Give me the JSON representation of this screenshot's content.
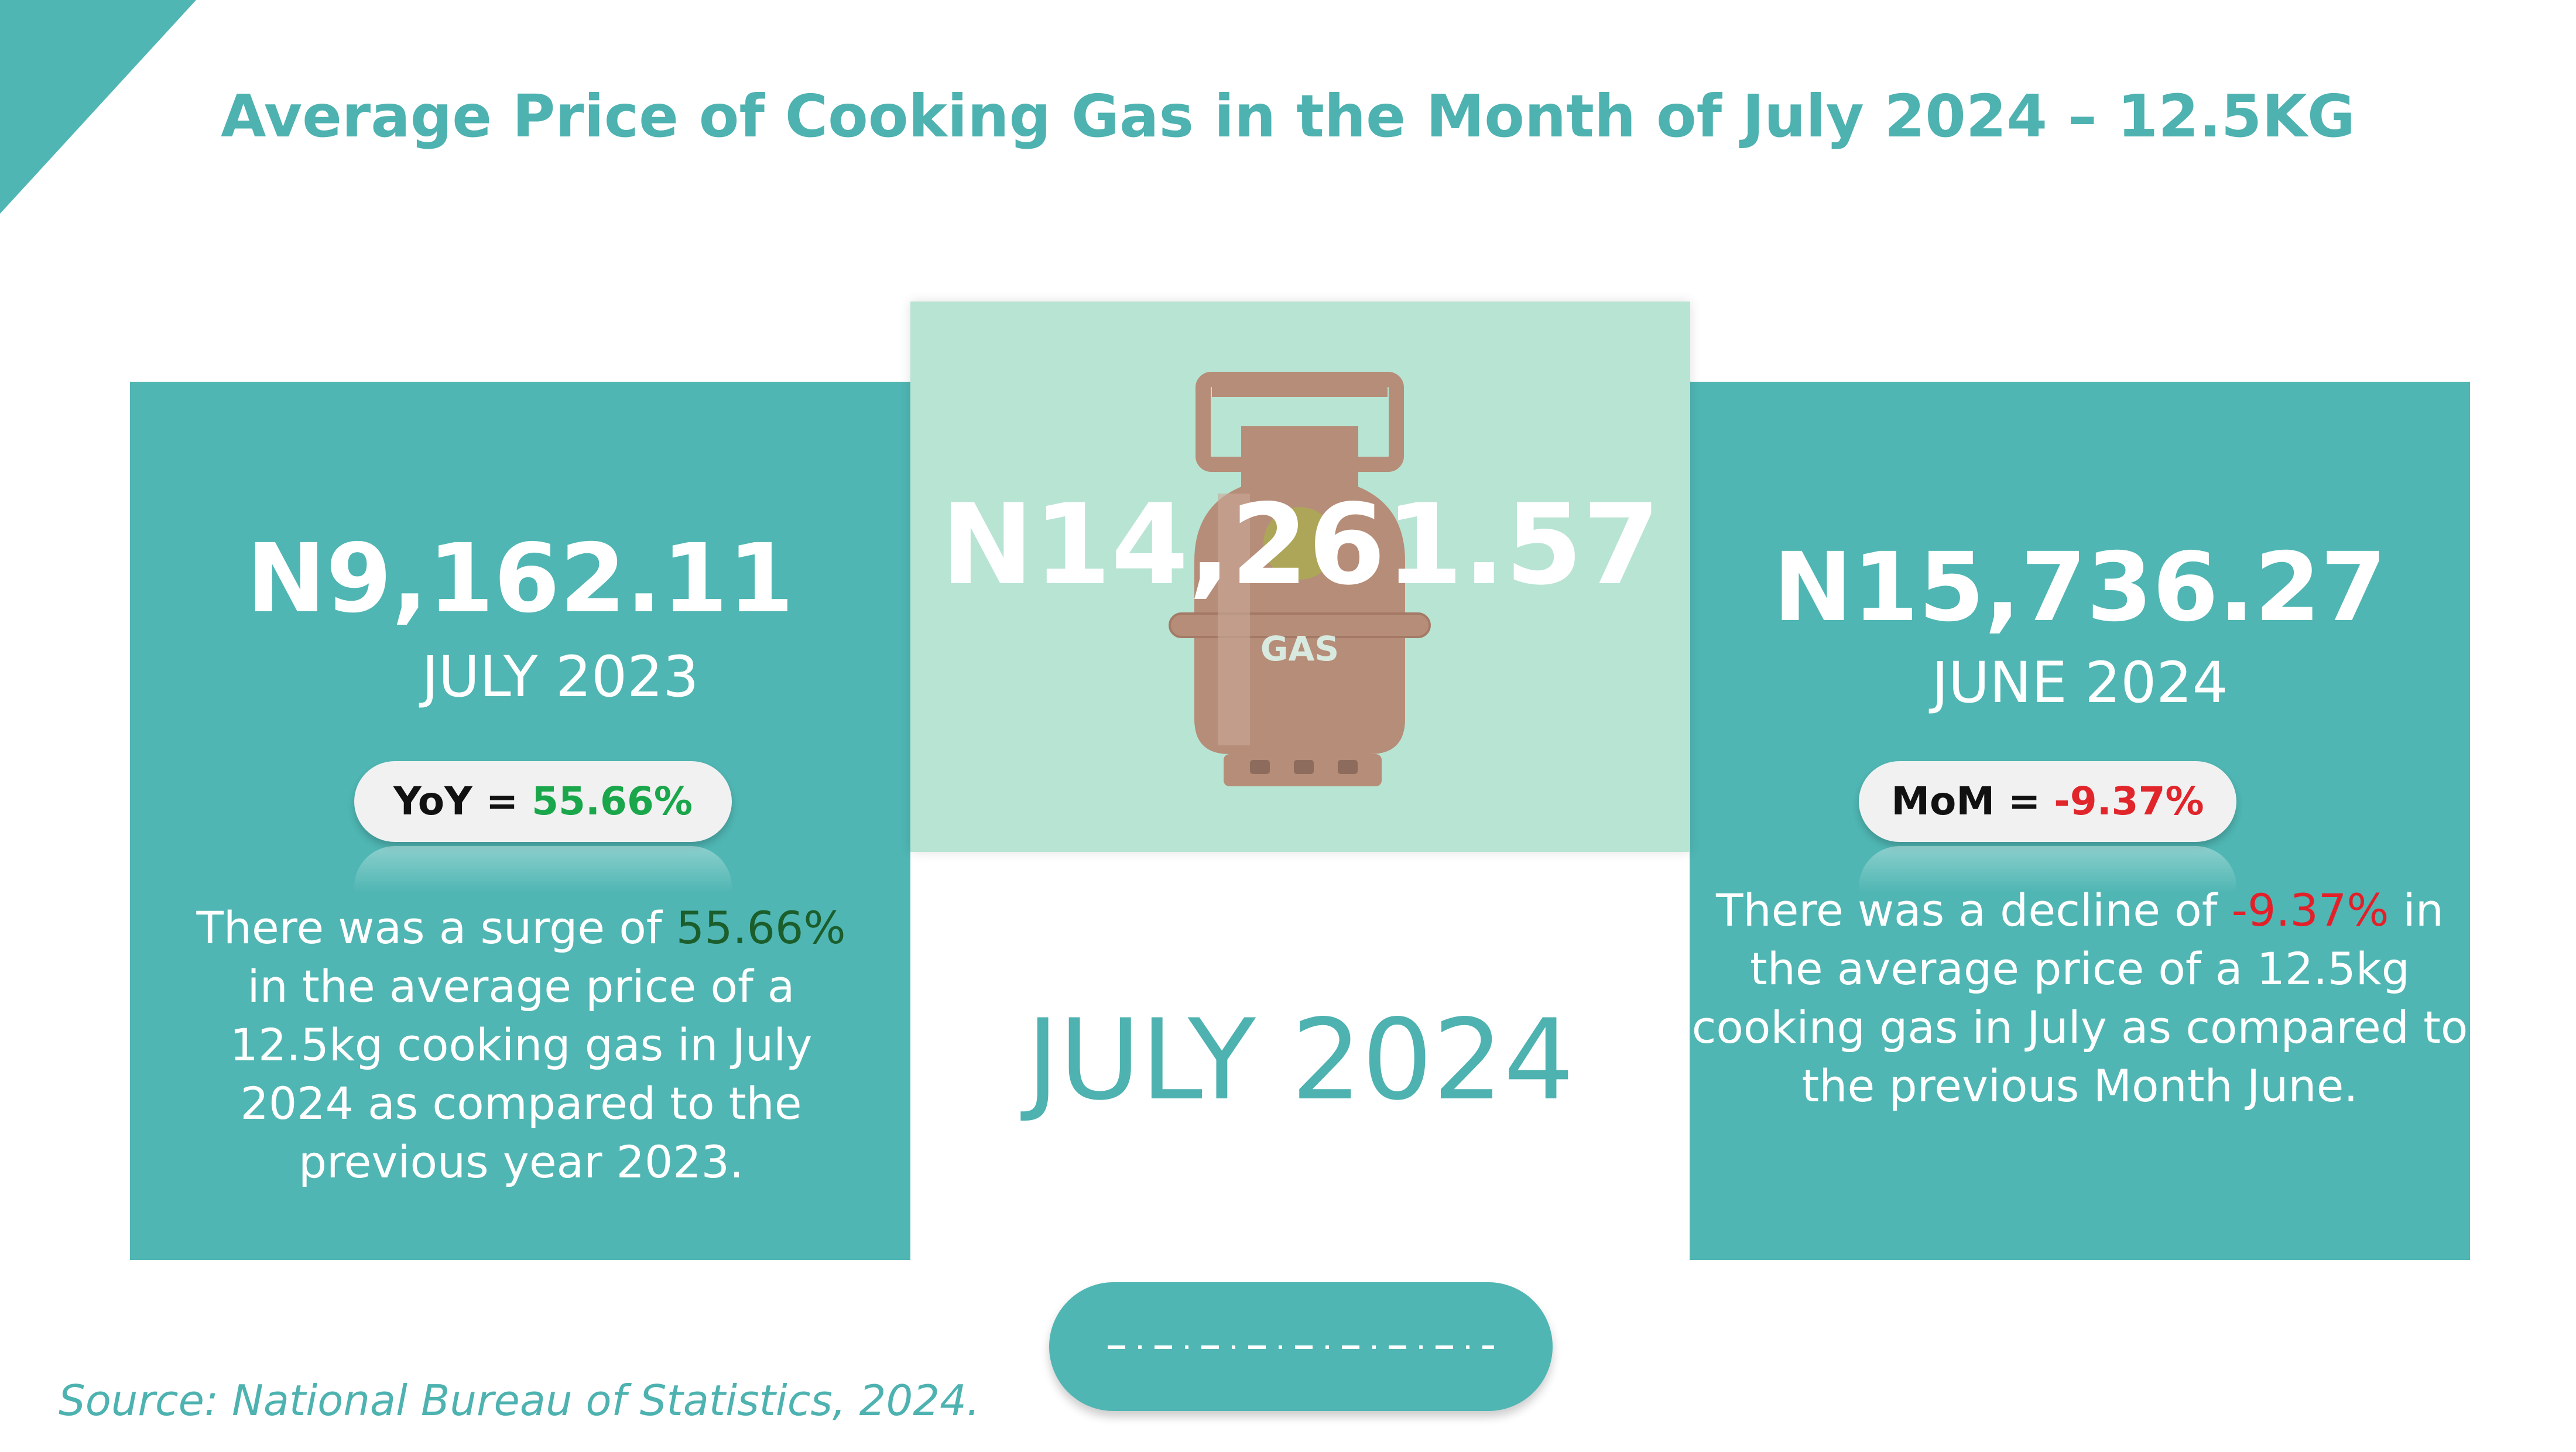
{
  "title": "Average  Price of Cooking Gas in the Month of July 2024 – 12.5KG",
  "colors": {
    "accent": "#4fb6b3",
    "center_bg": "#b8e4d3",
    "positive": "#1aa64a",
    "negative": "#e0262b"
  },
  "center": {
    "price": "N14,261.57",
    "cylinder_label": "GAS",
    "month": "JULY 2024",
    "icon": "gas-cylinder-icon"
  },
  "left": {
    "price": "N9,162.11",
    "period": "JULY 2023",
    "badge_label": "YoY",
    "badge_eq": "=",
    "badge_value": "55.66%",
    "desc_before": "There was a surge  of  ",
    "desc_value": "55.66%",
    "desc_after": " in the average price of a 12.5kg cooking  gas in July 2024 as compared to the previous year 2023."
  },
  "right": {
    "price": "N15,736.27",
    "period": "JUNE 2024",
    "badge_label": "MoM",
    "badge_eq": "=",
    "badge_value": "-9.37%",
    "desc_before": "There was a decline  of  ",
    "desc_value": "-9.37%",
    "desc_after": " in the average price of a 12.5kg cooking gas in July  as compared to the previous Month June."
  },
  "source": "Source: National Bureau of Statistics, 2024."
}
